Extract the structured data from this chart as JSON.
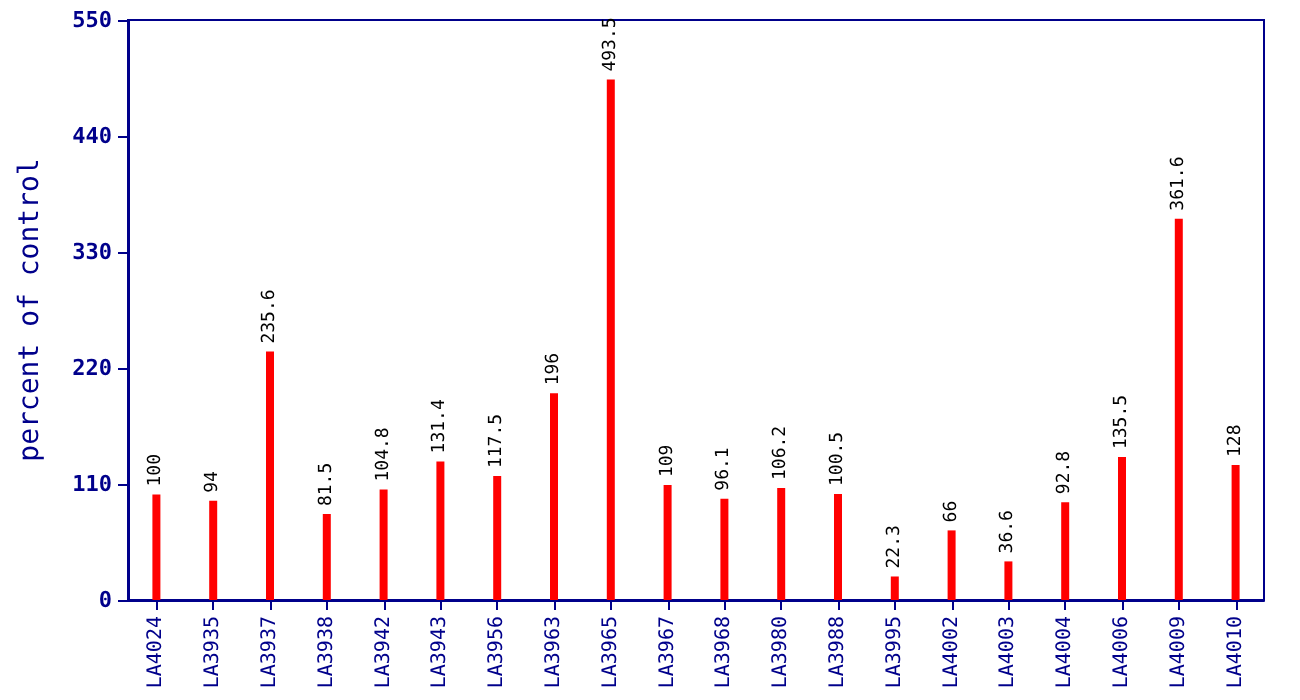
{
  "chart_data": {
    "type": "bar",
    "ylabel": "percent of control",
    "categories": [
      "LA4024",
      "LA3935",
      "LA3937",
      "LA3938",
      "LA3942",
      "LA3943",
      "LA3956",
      "LA3963",
      "LA3965",
      "LA3967",
      "LA3968",
      "LA3980",
      "LA3988",
      "LA3995",
      "LA4002",
      "LA4003",
      "LA4004",
      "LA4006",
      "LA4009",
      "LA4010"
    ],
    "values": [
      100,
      94,
      235.6,
      81.5,
      104.8,
      131.4,
      117.5,
      196,
      493.5,
      109,
      96.1,
      106.2,
      100.5,
      22.3,
      66,
      36.6,
      92.8,
      135.5,
      361.6,
      128
    ],
    "color": "#ff0000",
    "ylim": [
      0,
      550
    ],
    "yticks": [
      0,
      110,
      220,
      330,
      440,
      550
    ],
    "data_labels": true,
    "grid": false
  }
}
